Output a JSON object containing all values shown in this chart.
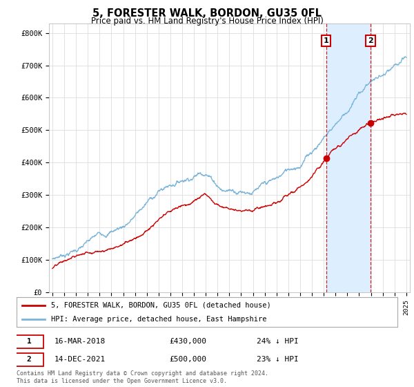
{
  "title": "5, FORESTER WALK, BORDON, GU35 0FL",
  "subtitle": "Price paid vs. HM Land Registry's House Price Index (HPI)",
  "ylim": [
    0,
    830000
  ],
  "yticks": [
    0,
    100000,
    200000,
    300000,
    400000,
    500000,
    600000,
    700000,
    800000
  ],
  "ytick_labels": [
    "£0",
    "£100K",
    "£200K",
    "£300K",
    "£400K",
    "£500K",
    "£600K",
    "£700K",
    "£800K"
  ],
  "hpi_color": "#7ab4d8",
  "price_color": "#cc0000",
  "shade_color": "#ddeeff",
  "t1": 2018.21,
  "t2": 2021.96,
  "price1": 430000,
  "price2": 500000,
  "annotation1": {
    "label": "1",
    "date": "16-MAR-2018",
    "price": "£430,000",
    "pct": "24% ↓ HPI"
  },
  "annotation2": {
    "label": "2",
    "date": "14-DEC-2021",
    "price": "£500,000",
    "pct": "23% ↓ HPI"
  },
  "legend_line1": "5, FORESTER WALK, BORDON, GU35 0FL (detached house)",
  "legend_line2": "HPI: Average price, detached house, East Hampshire",
  "footer": "Contains HM Land Registry data © Crown copyright and database right 2024.\nThis data is licensed under the Open Government Licence v3.0.",
  "background_color": "#ffffff",
  "grid_color": "#dddddd",
  "xlim_left": 1994.7,
  "xlim_right": 2025.3
}
